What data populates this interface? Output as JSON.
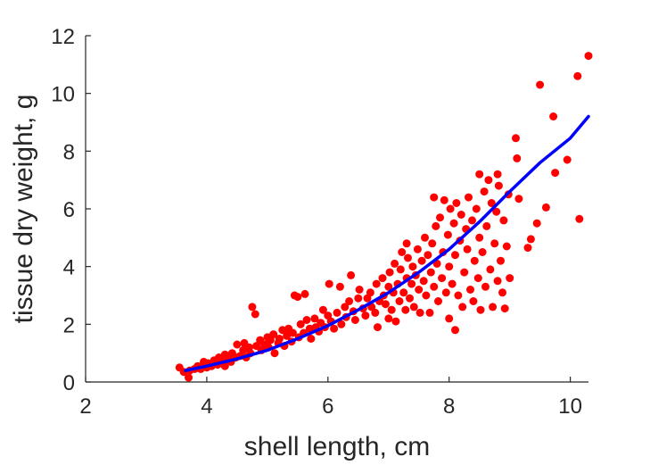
{
  "chart_data": {
    "type": "scatter",
    "title": "",
    "xlabel": "shell length, cm",
    "ylabel": "tissue dry weight, g",
    "xlim": [
      2,
      10.3
    ],
    "ylim": [
      0,
      12
    ],
    "xticks": [
      2,
      4,
      6,
      8,
      10
    ],
    "yticks": [
      0,
      2,
      4,
      6,
      8,
      10,
      12
    ],
    "grid": false,
    "legend": "none",
    "series": [
      {
        "type": "scatter",
        "color": "#ff0000",
        "points": [
          [
            3.55,
            0.5
          ],
          [
            3.62,
            0.35
          ],
          [
            3.7,
            0.15
          ],
          [
            3.72,
            0.4
          ],
          [
            3.8,
            0.45
          ],
          [
            3.85,
            0.55
          ],
          [
            3.9,
            0.45
          ],
          [
            3.95,
            0.7
          ],
          [
            4.0,
            0.5
          ],
          [
            4.02,
            0.65
          ],
          [
            4.08,
            0.55
          ],
          [
            4.12,
            0.75
          ],
          [
            4.18,
            0.6
          ],
          [
            4.2,
            0.85
          ],
          [
            4.25,
            0.7
          ],
          [
            4.3,
            0.55
          ],
          [
            4.3,
            0.95
          ],
          [
            4.35,
            0.8
          ],
          [
            4.4,
            0.7
          ],
          [
            4.42,
            1.0
          ],
          [
            4.48,
            0.85
          ],
          [
            4.5,
            1.3
          ],
          [
            4.55,
            0.9
          ],
          [
            4.6,
            1.1
          ],
          [
            4.62,
            1.35
          ],
          [
            4.65,
            0.85
          ],
          [
            4.7,
            1.2
          ],
          [
            4.72,
            1.0
          ],
          [
            4.75,
            2.6
          ],
          [
            4.8,
            2.35
          ],
          [
            4.82,
            1.25
          ],
          [
            4.88,
            1.45
          ],
          [
            4.9,
            1.1
          ],
          [
            4.95,
            1.3
          ],
          [
            5.0,
            1.55
          ],
          [
            5.02,
            1.2
          ],
          [
            5.05,
            1.45
          ],
          [
            5.1,
            1.65
          ],
          [
            5.12,
            1.0
          ],
          [
            5.18,
            1.35
          ],
          [
            5.2,
            1.5
          ],
          [
            5.25,
            1.8
          ],
          [
            5.28,
            1.25
          ],
          [
            5.32,
            1.6
          ],
          [
            5.35,
            1.85
          ],
          [
            5.4,
            1.4
          ],
          [
            5.42,
            1.7
          ],
          [
            5.45,
            3.0
          ],
          [
            5.5,
            2.95
          ],
          [
            5.52,
            1.55
          ],
          [
            5.55,
            2.0
          ],
          [
            5.6,
            1.7
          ],
          [
            5.62,
            3.05
          ],
          [
            5.65,
            2.15
          ],
          [
            5.7,
            1.85
          ],
          [
            5.72,
            1.5
          ],
          [
            5.78,
            2.2
          ],
          [
            5.8,
            1.9
          ],
          [
            5.85,
            1.75
          ],
          [
            5.88,
            2.05
          ],
          [
            5.92,
            2.5
          ],
          [
            5.95,
            1.9
          ],
          [
            6.0,
            2.3
          ],
          [
            6.02,
            3.4
          ],
          [
            6.05,
            2.1
          ],
          [
            6.1,
            1.85
          ],
          [
            6.15,
            2.4
          ],
          [
            6.2,
            3.3
          ],
          [
            6.22,
            2.0
          ],
          [
            6.28,
            2.6
          ],
          [
            6.3,
            2.25
          ],
          [
            6.35,
            2.8
          ],
          [
            6.38,
            3.7
          ],
          [
            6.42,
            2.45
          ],
          [
            6.45,
            2.15
          ],
          [
            6.5,
            2.9
          ],
          [
            6.52,
            3.2
          ],
          [
            6.58,
            2.55
          ],
          [
            6.62,
            2.3
          ],
          [
            6.65,
            2.9
          ],
          [
            6.7,
            3.1
          ],
          [
            6.72,
            2.6
          ],
          [
            6.78,
            2.4
          ],
          [
            6.8,
            3.4
          ],
          [
            6.82,
            1.9
          ],
          [
            6.85,
            2.8
          ],
          [
            6.9,
            3.6
          ],
          [
            6.92,
            3.0
          ],
          [
            6.95,
            2.7
          ],
          [
            7.0,
            3.3
          ],
          [
            7.0,
            2.2
          ],
          [
            7.02,
            3.8
          ],
          [
            7.05,
            2.5
          ],
          [
            7.08,
            3.1
          ],
          [
            7.1,
            4.1
          ],
          [
            7.12,
            2.1
          ],
          [
            7.15,
            3.4
          ],
          [
            7.18,
            2.8
          ],
          [
            7.2,
            3.9
          ],
          [
            7.22,
            4.5
          ],
          [
            7.25,
            3.1
          ],
          [
            7.28,
            2.5
          ],
          [
            7.3,
            3.6
          ],
          [
            7.3,
            4.8
          ],
          [
            7.32,
            4.3
          ],
          [
            7.35,
            2.9
          ],
          [
            7.38,
            3.4
          ],
          [
            7.4,
            4.0
          ],
          [
            7.42,
            2.6
          ],
          [
            7.45,
            3.7
          ],
          [
            7.48,
            4.6
          ],
          [
            7.5,
            3.2
          ],
          [
            7.52,
            2.4
          ],
          [
            7.55,
            4.2
          ],
          [
            7.58,
            3.5
          ],
          [
            7.6,
            5.0
          ],
          [
            7.62,
            3.0
          ],
          [
            7.65,
            4.4
          ],
          [
            7.68,
            2.4
          ],
          [
            7.7,
            3.8
          ],
          [
            7.72,
            4.8
          ],
          [
            7.75,
            3.3
          ],
          [
            7.75,
            6.4
          ],
          [
            7.78,
            5.4
          ],
          [
            7.8,
            4.1
          ],
          [
            7.82,
            2.8
          ],
          [
            7.85,
            5.7
          ],
          [
            7.88,
            3.6
          ],
          [
            7.9,
            4.5
          ],
          [
            7.92,
            6.3
          ],
          [
            7.95,
            3.1
          ],
          [
            7.98,
            5.1
          ],
          [
            8.0,
            4.0
          ],
          [
            8.0,
            2.2
          ],
          [
            8.02,
            6.0
          ],
          [
            8.05,
            3.4
          ],
          [
            8.08,
            5.5
          ],
          [
            8.1,
            4.4
          ],
          [
            8.1,
            1.8
          ],
          [
            8.12,
            6.2
          ],
          [
            8.15,
            3.0
          ],
          [
            8.18,
            4.9
          ],
          [
            8.2,
            5.8
          ],
          [
            8.22,
            2.6
          ],
          [
            8.25,
            3.8
          ],
          [
            8.28,
            5.3
          ],
          [
            8.3,
            4.6
          ],
          [
            8.32,
            6.4
          ],
          [
            8.35,
            3.2
          ],
          [
            8.38,
            5.6
          ],
          [
            8.4,
            2.8
          ],
          [
            8.42,
            4.2
          ],
          [
            8.45,
            6.0
          ],
          [
            8.48,
            3.6
          ],
          [
            8.5,
            7.2
          ],
          [
            8.5,
            5.0
          ],
          [
            8.52,
            2.5
          ],
          [
            8.55,
            4.5
          ],
          [
            8.58,
            6.6
          ],
          [
            8.6,
            3.3
          ],
          [
            8.62,
            5.4
          ],
          [
            8.65,
            7.0
          ],
          [
            8.68,
            3.9
          ],
          [
            8.7,
            6.2
          ],
          [
            8.72,
            2.6
          ],
          [
            8.75,
            4.8
          ],
          [
            8.78,
            5.9
          ],
          [
            8.8,
            7.2
          ],
          [
            8.8,
            3.5
          ],
          [
            8.82,
            6.8
          ],
          [
            8.85,
            4.2
          ],
          [
            8.88,
            3.1
          ],
          [
            8.9,
            5.6
          ],
          [
            8.92,
            2.55
          ],
          [
            8.95,
            4.7
          ],
          [
            8.98,
            6.5
          ],
          [
            9.0,
            3.6
          ],
          [
            9.1,
            8.45
          ],
          [
            9.12,
            7.75
          ],
          [
            9.15,
            6.35
          ],
          [
            9.3,
            4.65
          ],
          [
            9.35,
            4.95
          ],
          [
            9.45,
            5.5
          ],
          [
            9.5,
            10.3
          ],
          [
            9.6,
            6.05
          ],
          [
            9.72,
            9.2
          ],
          [
            9.75,
            7.25
          ],
          [
            9.95,
            7.7
          ],
          [
            10.12,
            10.6
          ],
          [
            10.15,
            5.65
          ],
          [
            10.3,
            11.3
          ]
        ]
      },
      {
        "type": "line",
        "color": "#0000ff",
        "curve": [
          [
            3.65,
            0.4
          ],
          [
            4.0,
            0.55
          ],
          [
            4.5,
            0.8
          ],
          [
            5.0,
            1.1
          ],
          [
            5.5,
            1.5
          ],
          [
            6.0,
            1.95
          ],
          [
            6.5,
            2.5
          ],
          [
            7.0,
            3.1
          ],
          [
            7.5,
            3.8
          ],
          [
            8.0,
            4.6
          ],
          [
            8.5,
            5.55
          ],
          [
            9.0,
            6.6
          ],
          [
            9.5,
            7.6
          ],
          [
            10.0,
            8.45
          ],
          [
            10.3,
            9.2
          ]
        ]
      }
    ]
  }
}
